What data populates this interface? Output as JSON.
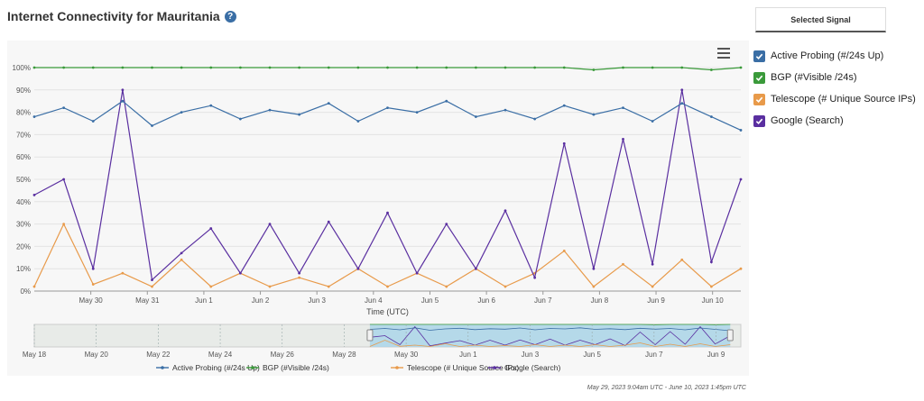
{
  "header": {
    "title": "Internet Connectivity for Mauritania",
    "help_icon": "?"
  },
  "selected_signal_tab": "Selected Signal",
  "signals": [
    {
      "label": "Active Probing (#/24s Up)",
      "color": "#3a6ea5",
      "checked": true
    },
    {
      "label": "BGP (#Visible /24s)",
      "color": "#3a9a3a",
      "checked": true
    },
    {
      "label": "Telescope (# Unique Source IPs)",
      "color": "#e89a4a",
      "checked": true
    },
    {
      "label": "Google (Search)",
      "color": "#5a2fa0",
      "checked": true
    }
  ],
  "date_range": "May 29, 2023 9:04am UTC - June 10, 2023 1:45pm UTC",
  "navigator": {
    "ticks": [
      "May 18",
      "May 20",
      "May 22",
      "May 24",
      "May 26",
      "May 28",
      "May 30",
      "Jun 1",
      "Jun 3",
      "Jun 5",
      "Jun 7",
      "Jun 9"
    ],
    "selected_start_fraction": 0.475,
    "selected_end_fraction": 0.985
  },
  "chart_data": {
    "type": "line",
    "xlabel": "Time (UTC)",
    "ylim": [
      0,
      100
    ],
    "yticks": [
      "0%",
      "10%",
      "20%",
      "30%",
      "40%",
      "50%",
      "60%",
      "70%",
      "80%",
      "90%",
      "100%"
    ],
    "x": [
      "May 29 12:00",
      "May 30 00:00",
      "May 30 12:00",
      "May 31 00:00",
      "May 31 12:00",
      "Jun 1 00:00",
      "Jun 1 12:00",
      "Jun 2 00:00",
      "Jun 2 12:00",
      "Jun 3 00:00",
      "Jun 3 12:00",
      "Jun 4 00:00",
      "Jun 4 12:00",
      "Jun 5 00:00",
      "Jun 5 12:00",
      "Jun 6 00:00",
      "Jun 6 12:00",
      "Jun 7 00:00",
      "Jun 7 12:00",
      "Jun 8 00:00",
      "Jun 8 12:00",
      "Jun 9 00:00",
      "Jun 9 12:00",
      "Jun 10 00:00",
      "Jun 10 12:00"
    ],
    "xticks": [
      "May 30",
      "May 31",
      "Jun 1",
      "Jun 2",
      "Jun 3",
      "Jun 4",
      "Jun 5",
      "Jun 6",
      "Jun 7",
      "Jun 8",
      "Jun 9",
      "Jun 10"
    ],
    "series": [
      {
        "name": "Google (Search)",
        "color": "#5a2fa0",
        "values": [
          43,
          50,
          10,
          90,
          5,
          17,
          28,
          8,
          30,
          8,
          31,
          10,
          35,
          8,
          30,
          10,
          36,
          6,
          66,
          10,
          68,
          12,
          90,
          13,
          50
        ]
      },
      {
        "name": "Telescope (# Unique Source IPs)",
        "color": "#e89a4a",
        "values": [
          2,
          30,
          3,
          8,
          2,
          14,
          2,
          8,
          2,
          6,
          2,
          10,
          2,
          8,
          2,
          10,
          2,
          8,
          18,
          2,
          12,
          2,
          14,
          2,
          10
        ]
      },
      {
        "name": "BGP (#Visible /24s)",
        "color": "#3a9a3a",
        "values": [
          100,
          100,
          100,
          100,
          100,
          100,
          100,
          100,
          100,
          100,
          100,
          100,
          100,
          100,
          100,
          100,
          100,
          100,
          100,
          99,
          100,
          100,
          100,
          99,
          100
        ]
      },
      {
        "name": "Active Probing (#/24s Up)",
        "color": "#3a6ea5",
        "values": [
          78,
          82,
          76,
          85,
          74,
          80,
          83,
          77,
          81,
          79,
          84,
          76,
          82,
          80,
          85,
          78,
          81,
          77,
          83,
          79,
          82,
          76,
          84,
          78,
          72
        ]
      }
    ]
  }
}
